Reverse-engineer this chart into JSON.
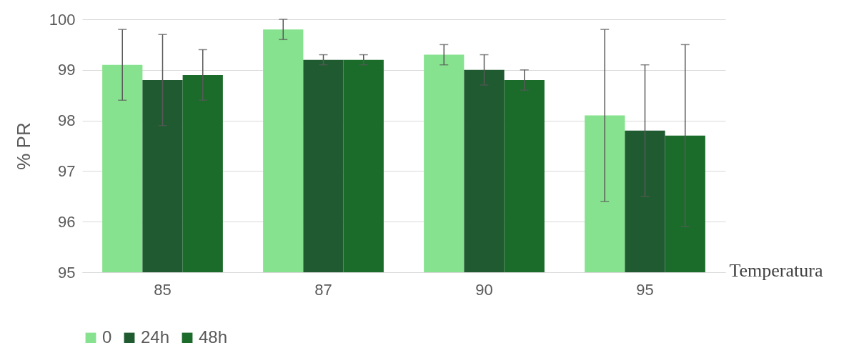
{
  "chart_data": {
    "type": "bar",
    "xlabel": "Temperatura",
    "ylabel": "% PR",
    "categories": [
      "85",
      "87",
      "90",
      "95"
    ],
    "series": [
      {
        "name": "0",
        "color": "#86e28e",
        "values": [
          99.1,
          99.8,
          99.3,
          98.1
        ],
        "errors": [
          [
            98.4,
            99.8
          ],
          [
            99.6,
            100
          ],
          [
            99.1,
            99.5
          ],
          [
            96.4,
            99.8
          ]
        ]
      },
      {
        "name": "24h",
        "color": "#1f5a30",
        "values": [
          98.8,
          99.2,
          99.0,
          97.8
        ],
        "errors": [
          [
            97.9,
            99.7
          ],
          [
            99.1,
            99.3
          ],
          [
            98.7,
            99.3
          ],
          [
            96.5,
            99.1
          ]
        ]
      },
      {
        "name": "48h",
        "color": "#1b6b2b",
        "values": [
          98.9,
          99.2,
          98.8,
          97.7
        ],
        "errors": [
          [
            98.4,
            99.4
          ],
          [
            99.1,
            99.3
          ],
          [
            98.6,
            99.0
          ],
          [
            95.9,
            99.5
          ]
        ]
      }
    ],
    "ylim": [
      95,
      100
    ],
    "yticks": [
      95,
      96,
      97,
      98,
      99,
      100
    ],
    "grid": "y",
    "legend": "bottom"
  }
}
